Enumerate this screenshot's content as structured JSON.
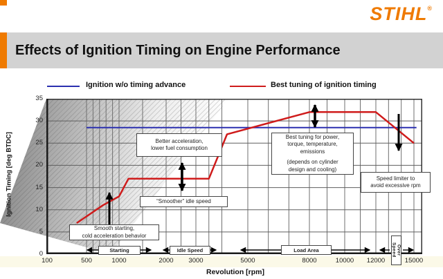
{
  "logo": {
    "text": "STIHL",
    "registered": "®",
    "color": "#ef7a00"
  },
  "title": "Effects of Ignition Timing on Engine Performance",
  "legend": {
    "items": [
      {
        "label": "Ignition w/o timing advance",
        "color": "#2a2faf"
      },
      {
        "label": "Best tuning of ignition timing",
        "color": "#cf1b1b"
      }
    ]
  },
  "chart_data": {
    "type": "line",
    "xlabel": "Revolution  [rpm]",
    "ylabel": "Ignition Timing [deg BTDC]",
    "ylim": [
      0,
      35
    ],
    "yticks": [
      0,
      5,
      10,
      15,
      20,
      25,
      30,
      35
    ],
    "xticks": [
      100,
      500,
      1000,
      2000,
      3000,
      5000,
      8000,
      10000,
      12000,
      15000
    ],
    "x_scale": "non-linear rpm axis",
    "grid": "on",
    "grid_x_rpm": [
      100,
      500,
      600,
      700,
      800,
      900,
      1000,
      1500,
      2000,
      2500,
      3000,
      3500,
      4000,
      5000,
      6000,
      7000,
      8000,
      9000,
      10000,
      11000,
      12000,
      13000,
      14000,
      15000
    ],
    "series": [
      {
        "name": "Ignition w/o timing advance",
        "color": "#2a2faf",
        "width": 2,
        "points": [
          [
            500,
            28.5
          ],
          [
            15200,
            28.5
          ]
        ]
      },
      {
        "name": "Best tuning of ignition timing",
        "color": "#cf1b1b",
        "width": 2.5,
        "points": [
          [
            400,
            7
          ],
          [
            750,
            11
          ],
          [
            1000,
            13
          ],
          [
            1200,
            17
          ],
          [
            3500,
            17
          ],
          [
            4200,
            27
          ],
          [
            8000,
            32
          ],
          [
            12000,
            32
          ],
          [
            15000,
            25
          ]
        ]
      }
    ]
  },
  "annotations": {
    "better": {
      "lines": [
        "Better acceleration,",
        "lower fuel consumption"
      ]
    },
    "smoother": {
      "lines": [
        "“Smoother” idle speed"
      ]
    },
    "smooth_start": {
      "lines": [
        "Smooth starting,",
        "cold acceleration behavior"
      ]
    },
    "best_tuning": {
      "lines": [
        "Best tuning for power,",
        "torque, temperature,",
        "emissions"
      ],
      "lines2": [
        "(depends on cylinder",
        "design and cooling)"
      ]
    },
    "limiter": {
      "lines": [
        "Speed limiter to",
        "avoid excessive rpm"
      ]
    }
  },
  "ranges": {
    "starting": "Starting",
    "idle": "Idle Speed",
    "load": "Load Area",
    "over": "Over Speed"
  }
}
